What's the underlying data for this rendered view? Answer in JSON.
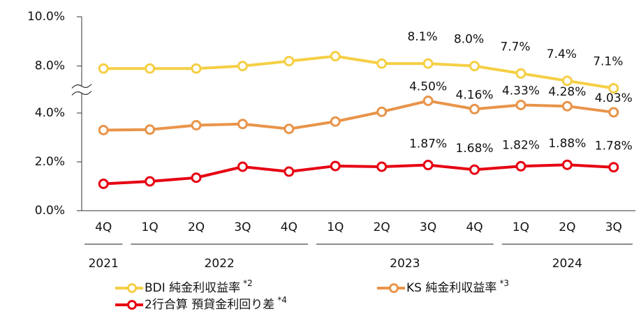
{
  "chart_data": {
    "type": "line",
    "categories": [
      "4Q",
      "1Q",
      "2Q",
      "3Q",
      "4Q",
      "1Q",
      "2Q",
      "3Q",
      "4Q",
      "1Q",
      "2Q",
      "3Q"
    ],
    "groups": [
      {
        "label": "2021",
        "count": 1
      },
      {
        "label": "2022",
        "count": 4
      },
      {
        "label": "2023",
        "count": 4
      },
      {
        "label": "2024",
        "count": 3
      }
    ],
    "ylim": [
      0,
      10
    ],
    "y_break": [
      5,
      7
    ],
    "yticks": [
      {
        "value": 0,
        "label": "0.0%"
      },
      {
        "value": 2,
        "label": "2.0%"
      },
      {
        "value": 4,
        "label": "4.0%"
      },
      {
        "value": 8,
        "label": "8.0%"
      },
      {
        "value": 10,
        "label": "10.0%"
      }
    ],
    "grid": false,
    "series": [
      {
        "name": "BDI 純金利収益率",
        "note": "*2",
        "color": "#f5cf45",
        "values": [
          7.9,
          7.9,
          7.9,
          8.0,
          8.2,
          8.4,
          8.1,
          8.1,
          8.0,
          7.7,
          7.4,
          7.1
        ],
        "value_labels": [
          null,
          null,
          null,
          null,
          null,
          null,
          null,
          "8.1%",
          "8.0%",
          "7.7%",
          "7.4%",
          "7.1%"
        ]
      },
      {
        "name": "KS 純金利収益率",
        "note": "*3",
        "color": "#e9944a",
        "values": [
          3.3,
          3.32,
          3.5,
          3.55,
          3.35,
          3.65,
          4.05,
          4.5,
          4.16,
          4.33,
          4.28,
          4.03
        ],
        "value_labels": [
          null,
          null,
          null,
          null,
          null,
          null,
          null,
          "4.50%",
          "4.16%",
          "4.33%",
          "4.28%",
          "4.03%"
        ]
      },
      {
        "name": "2行合算 預貸金利回り差",
        "note": "*4",
        "color": "#e60012",
        "values": [
          1.1,
          1.2,
          1.35,
          1.8,
          1.6,
          1.83,
          1.8,
          1.87,
          1.68,
          1.82,
          1.88,
          1.78
        ],
        "value_labels": [
          null,
          null,
          null,
          null,
          null,
          null,
          null,
          "1.87%",
          "1.68%",
          "1.82%",
          "1.88%",
          "1.78%"
        ]
      }
    ]
  }
}
